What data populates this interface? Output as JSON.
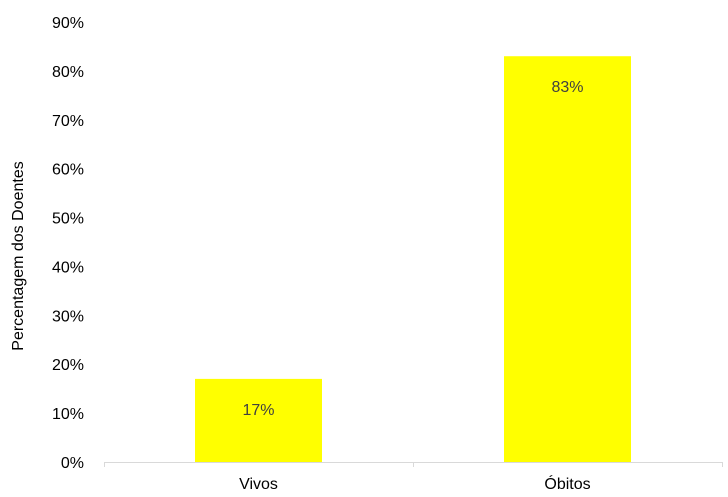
{
  "chart_data": {
    "type": "bar",
    "categories": [
      "Vivos",
      "Óbitos"
    ],
    "values": [
      17,
      83
    ],
    "data_labels": [
      "17%",
      "83%"
    ],
    "title": "",
    "xlabel": "",
    "ylabel": "Percentagem dos Doentes",
    "ylim": [
      0,
      90
    ],
    "yticks": [
      0,
      10,
      20,
      30,
      40,
      50,
      60,
      70,
      80,
      90
    ],
    "ytick_labels": [
      "0%",
      "10%",
      "20%",
      "30%",
      "40%",
      "50%",
      "60%",
      "70%",
      "80%",
      "90%"
    ],
    "grid": false,
    "legend": "none",
    "bar_color": "#ffff00",
    "axis_color": "#d9d9d9"
  }
}
